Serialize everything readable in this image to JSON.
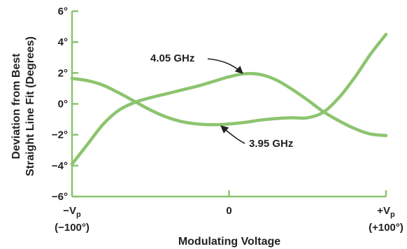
{
  "chart_data": {
    "type": "line",
    "xlabel": "Modulating Voltage",
    "ylabel_lines": [
      "Deviation from Best",
      "Straight Line Fit (Degrees)"
    ],
    "x_ticks": [
      {
        "x": -100,
        "label_main": "−V",
        "label_sub": "p",
        "label_note": "(−100°)"
      },
      {
        "x": 0,
        "label_main": "0",
        "label_sub": "",
        "label_note": ""
      },
      {
        "x": 100,
        "label_main": "+V",
        "label_sub": "p",
        "label_note": "(+100°)"
      }
    ],
    "y_ticks": [
      {
        "y": 6,
        "label": "6°"
      },
      {
        "y": 4,
        "label": "4°"
      },
      {
        "y": 2,
        "label": "2°"
      },
      {
        "y": 0,
        "label": "0°"
      },
      {
        "y": -2,
        "label": "−2°"
      },
      {
        "y": -4,
        "label": "−4°"
      },
      {
        "y": -6,
        "label": "−6°"
      }
    ],
    "xlim": [
      -100,
      100
    ],
    "ylim": [
      -6,
      6
    ],
    "grid": false,
    "line_color": "#8cc46e",
    "axis_color": "#8cc46e",
    "series": [
      {
        "name": "4.05 GHz",
        "x": [
          -100,
          -90,
          -80,
          -70,
          -60,
          -50,
          -40,
          -30,
          -20,
          -10,
          0,
          10,
          20,
          30,
          40,
          50,
          60,
          70,
          80,
          90,
          100
        ],
        "y": [
          -3.9,
          -2.6,
          -1.3,
          -0.4,
          0.1,
          0.4,
          0.65,
          0.9,
          1.15,
          1.45,
          1.75,
          1.95,
          1.9,
          1.55,
          0.95,
          0.25,
          -0.5,
          -1.1,
          -1.6,
          -1.95,
          -2.05
        ]
      },
      {
        "name": "3.95 GHz",
        "x": [
          -100,
          -90,
          -80,
          -70,
          -60,
          -50,
          -40,
          -30,
          -20,
          -10,
          0,
          10,
          20,
          30,
          40,
          50,
          60,
          70,
          80,
          90,
          100
        ],
        "y": [
          1.65,
          1.5,
          1.2,
          0.7,
          0.15,
          -0.4,
          -0.85,
          -1.15,
          -1.3,
          -1.35,
          -1.3,
          -1.2,
          -1.05,
          -0.95,
          -0.9,
          -0.9,
          -0.55,
          0.4,
          1.7,
          3.2,
          4.5
        ]
      }
    ],
    "annotations": [
      {
        "text": "4.05 GHz",
        "series": "4.05 GHz",
        "x": 10,
        "y": 1.95
      },
      {
        "text": "3.95 GHz",
        "series": "3.95 GHz",
        "x": -6,
        "y": -1.35
      }
    ]
  }
}
